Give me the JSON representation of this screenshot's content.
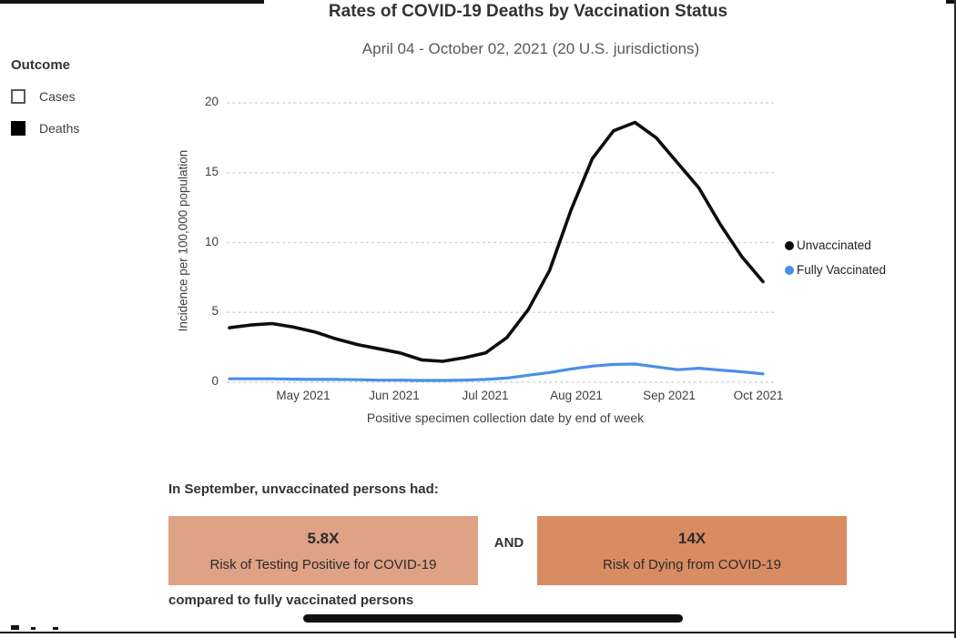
{
  "header": {
    "title": "Rates of COVID-19 Deaths by Vaccination Status",
    "subtitle": "April 04 - October 02, 2021 (20 U.S. jurisdictions)"
  },
  "outcome_filter": {
    "label": "Outcome",
    "options": [
      {
        "label": "Cases",
        "selected": false
      },
      {
        "label": "Deaths",
        "selected": true
      }
    ]
  },
  "chart_data": {
    "type": "line",
    "title": "Rates of COVID-19 Deaths by Vaccination Status",
    "subtitle": "April 04 - October 02, 2021 (20 U.S. jurisdictions)",
    "xlabel": "Positive specimen collection date by end of week",
    "ylabel": "Incidence per 100,000 population",
    "ylim": [
      0,
      20
    ],
    "y_ticks": [
      0,
      5,
      10,
      15,
      20
    ],
    "x_tick_labels": [
      "May 2021",
      "Jun 2021",
      "Jul 2021",
      "Aug 2021",
      "Sep 2021",
      "Oct 2021"
    ],
    "grid": "horizontal-dotted",
    "legend_position": "right",
    "x": [
      "Apr 10",
      "Apr 17",
      "Apr 24",
      "May 01",
      "May 08",
      "May 15",
      "May 22",
      "May 29",
      "Jun 05",
      "Jun 12",
      "Jun 19",
      "Jun 26",
      "Jul 03",
      "Jul 10",
      "Jul 17",
      "Jul 24",
      "Jul 31",
      "Aug 07",
      "Aug 14",
      "Aug 21",
      "Aug 28",
      "Sep 04",
      "Sep 11",
      "Sep 18",
      "Sep 25",
      "Oct 02"
    ],
    "series": [
      {
        "name": "Unvaccinated",
        "color": "#0d0d0d",
        "values": [
          3.9,
          4.1,
          4.2,
          3.95,
          3.6,
          3.1,
          2.7,
          2.4,
          2.1,
          1.6,
          1.5,
          1.75,
          2.1,
          3.2,
          5.2,
          8.0,
          12.3,
          16.0,
          18.0,
          18.6,
          17.5,
          15.7,
          13.9,
          11.3,
          9.0,
          7.2
        ]
      },
      {
        "name": "Fully Vaccinated",
        "color": "#4A8FE8",
        "values": [
          0.25,
          0.25,
          0.25,
          0.22,
          0.2,
          0.2,
          0.18,
          0.15,
          0.15,
          0.13,
          0.13,
          0.15,
          0.2,
          0.3,
          0.5,
          0.7,
          0.95,
          1.15,
          1.28,
          1.3,
          1.1,
          0.9,
          1.0,
          0.87,
          0.75,
          0.6
        ]
      }
    ]
  },
  "risk_summary": {
    "intro": "In September, unvaccinated persons had:",
    "conjunction": "AND",
    "cards": [
      {
        "multiplier": "5.8X",
        "description": "Risk of Testing Positive for COVID-19",
        "color": "#DFA285"
      },
      {
        "multiplier": "14X",
        "description": "Risk of Dying from COVID-19",
        "color": "#D98B62"
      }
    ],
    "footnote": "compared to fully vaccinated persons"
  }
}
